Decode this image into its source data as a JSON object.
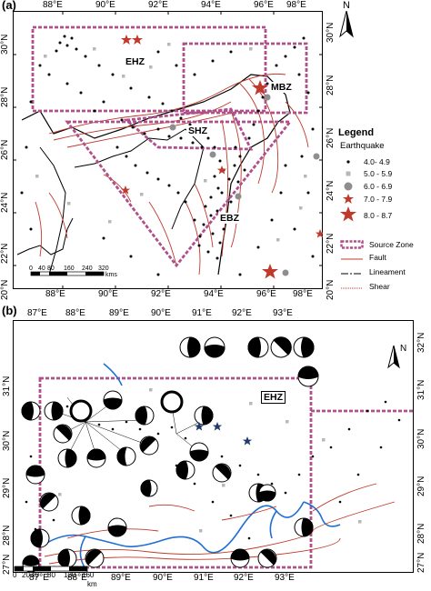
{
  "panel_a": {
    "label": "(a)",
    "top_ticks": [
      "88°E",
      "90°E",
      "92°E",
      "94°E",
      "96°E",
      "98°E"
    ],
    "bottom_ticks": [
      "88°E",
      "90°E",
      "92°E",
      "94°E",
      "96°E",
      "98°E"
    ],
    "left_ticks": [
      "30°N",
      "28°N",
      "26°N",
      "24°N",
      "22°N",
      "20°N"
    ],
    "right_ticks": [
      "30°N",
      "28°N",
      "26°N",
      "24°N",
      "22°N",
      "20°N"
    ],
    "north": "N",
    "zones": {
      "ehz": "EHZ",
      "mbz": "MBZ",
      "shz": "SHZ",
      "ebz": "EBZ"
    },
    "scale": {
      "labels": [
        "0",
        "40",
        "80",
        "160",
        "240",
        "320"
      ],
      "unit": "kms"
    }
  },
  "legend": {
    "title": "Legend",
    "subtitle": "Earthquake",
    "magnitudes": [
      "4.0- 4.9",
      "5.0 - 5.9",
      "6.0 - 6.9",
      "7.0 - 7.9",
      "8.0 - 8.7"
    ],
    "source_zone": "Source Zone",
    "fault": "Fault",
    "lineament": "Lineament",
    "shear": "Shear",
    "colors": {
      "zone": "#b0508a",
      "fault": "#c0392b",
      "star": "#c0392b",
      "river": "#1f6fd1"
    }
  },
  "panel_b": {
    "label": "(b)",
    "top_ticks": [
      "87°E",
      "88°E",
      "89°E",
      "90°E",
      "91°E",
      "92°E",
      "93°E"
    ],
    "bottom_ticks": [
      "87°E",
      "88°E",
      "89°E",
      "90°E",
      "91°E",
      "92°E",
      "93°E"
    ],
    "left_ticks": [
      "31°N",
      "30°N",
      "29°N",
      "28°N",
      "27°N"
    ],
    "right_ticks": [
      "32°N",
      "31°N",
      "30°N",
      "29°N",
      "28°N",
      "27°N"
    ],
    "north": "N",
    "zone": "EHZ",
    "scale": {
      "labels": [
        "0",
        "20",
        "40",
        "80",
        "120",
        "160"
      ],
      "unit": "km"
    }
  }
}
